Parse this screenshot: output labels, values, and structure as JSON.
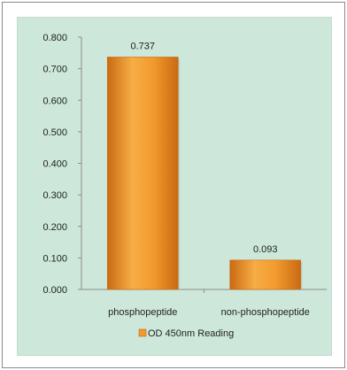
{
  "chart_data": {
    "type": "bar",
    "categories": [
      "phosphopeptide",
      "non-phosphopeptide"
    ],
    "series": [
      {
        "name": "OD 450nm Reading",
        "values": [
          0.737,
          0.093
        ]
      }
    ],
    "data_labels": [
      "0.737",
      "0.093"
    ],
    "y_ticks": [
      "0.000",
      "0.100",
      "0.200",
      "0.300",
      "0.400",
      "0.500",
      "0.600",
      "0.700",
      "0.800"
    ],
    "ylim": [
      0,
      0.8
    ],
    "grid": false,
    "legend": {
      "position": "bottom"
    },
    "colors": {
      "bar": "#f29a2e",
      "bar_dark": "#c96a12",
      "plot_bg": "#cde8da"
    }
  }
}
